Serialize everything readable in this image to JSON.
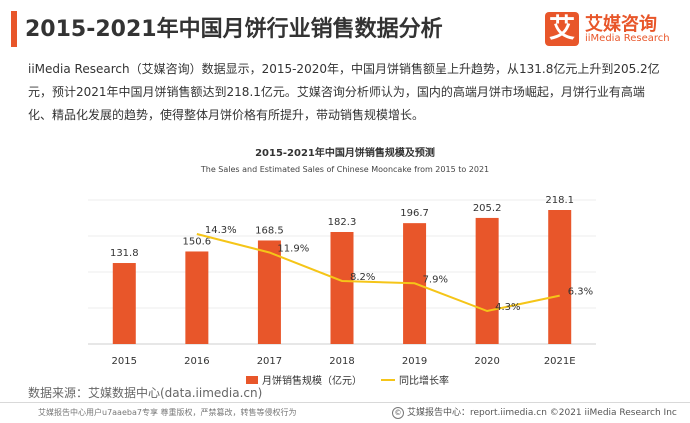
{
  "header": {
    "title": "2015-2021年中国月饼行业销售数据分析"
  },
  "logo": {
    "mark": "艾",
    "cn": "艾媒咨询",
    "en": "iiMedia Research"
  },
  "body_text": "iiMedia Research（艾媒咨询）数据显示，2015-2020年，中国月饼销售额呈上升趋势，从131.8亿元上升到205.2亿元，预计2021年中国月饼销售额达到218.1亿元。艾媒咨询分析师认为，国内的高端月饼市场崛起，月饼行业有高端化、精品化发展的趋势，使得整体月饼价格有所提升，带动销售规模增长。",
  "chart_data": {
    "type": "bar",
    "title": "2015-2021年中国月饼销售规模及预测",
    "subtitle": "The Sales and Estimated Sales of Chinese Mooncake from 2015 to 2021",
    "categories": [
      "2015",
      "2016",
      "2017",
      "2018",
      "2019",
      "2020",
      "2021E"
    ],
    "series": [
      {
        "name": "月饼销售规模（亿元）",
        "type": "bar",
        "values": [
          131.8,
          150.6,
          168.5,
          182.3,
          196.7,
          205.2,
          218.1
        ],
        "labels": [
          "131.8",
          "150.6",
          "168.5",
          "182.3",
          "196.7",
          "205.2",
          "218.1"
        ]
      },
      {
        "name": "同比增长率",
        "type": "line",
        "values": [
          null,
          14.3,
          11.9,
          8.2,
          7.9,
          4.3,
          6.3
        ],
        "labels": [
          "",
          "14.3%",
          "11.9%",
          "8.2%",
          "7.9%",
          "4.3%",
          "6.3%"
        ]
      }
    ],
    "grid": true,
    "legend": "bottom",
    "colors": {
      "bar": "#e8562a",
      "line": "#f5c518"
    }
  },
  "source": "数据来源：艾媒数据中心(data.iimedia.cn)",
  "footer": {
    "left": "艾媒报告中心用户u7aaeba7专享 尊重版权，严禁篡改，转售等侵权行为",
    "right": "艾媒报告中心：report.iimedia.cn  ©2021  iiMedia Research  Inc",
    "icon": "copyright-icon"
  }
}
